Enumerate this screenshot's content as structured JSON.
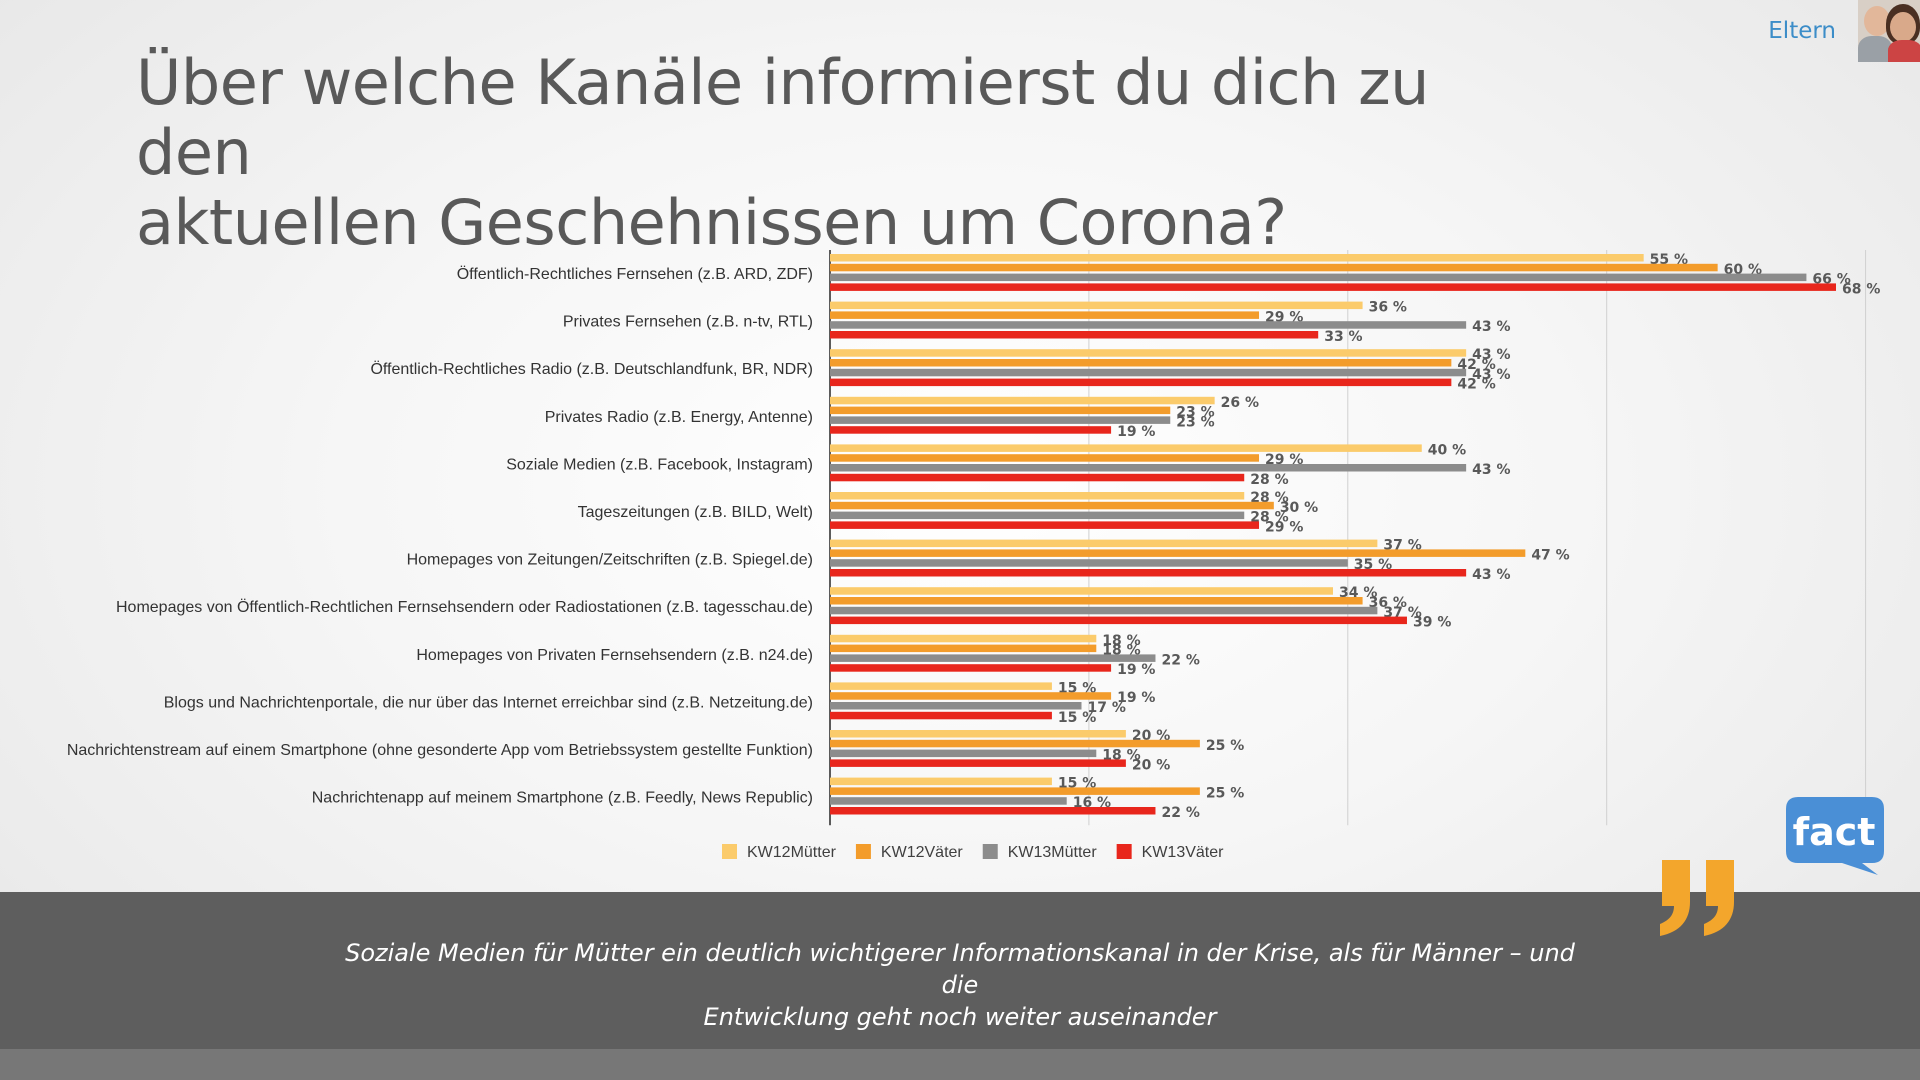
{
  "header": {
    "title_line1": "Über welche Kanäle informierst du dich zu den",
    "title_line2": "aktuellen Geschehnissen um Corona?",
    "section_label": "Eltern"
  },
  "colors": {
    "KW12Mütter": "#fbcb6b",
    "KW12Väter": "#f39c2b",
    "KW13Mütter": "#8c8c8c",
    "KW13Väter": "#e8261c",
    "quote_accent": "#f3a62c",
    "fact_logo": "#4a8fd6"
  },
  "chart_data": {
    "type": "bar",
    "orientation": "horizontal",
    "categories": [
      "Öffentlich-Rechtliches Fernsehen (z.B. ARD, ZDF)",
      "Privates Fernsehen (z.B. n-tv, RTL)",
      "Öffentlich-Rechtliches Radio (z.B. Deutschlandfunk, BR, NDR)",
      "Privates Radio (z.B. Energy, Antenne)",
      "Soziale Medien (z.B. Facebook, Instagram)",
      "Tageszeitungen (z.B. BILD, Welt)",
      "Homepages von Zeitungen/Zeitschriften (z.B. Spiegel.de)",
      "Homepages von Öffentlich-Rechtlichen Fernsehsendern oder Radiostationen (z.B. tagesschau.de)",
      "Homepages von Privaten Fernsehsendern (z.B. n24.de)",
      "Blogs und Nachrichtenportale, die nur über das Internet erreichbar sind (z.B. Netzeitung.de)",
      "Nachrichtenstream auf einem Smartphone (ohne gesonderte App vom Betriebssystem gestellte Funktion)",
      "Nachrichtenapp auf meinem Smartphone (z.B. Feedly, News Republic)"
    ],
    "series": [
      {
        "name": "KW12Mütter",
        "values": [
          55,
          36,
          43,
          26,
          40,
          28,
          37,
          34,
          18,
          15,
          20,
          15
        ]
      },
      {
        "name": "KW12Väter",
        "values": [
          60,
          29,
          42,
          23,
          29,
          30,
          47,
          36,
          18,
          19,
          25,
          25
        ]
      },
      {
        "name": "KW13Mütter",
        "values": [
          66,
          43,
          43,
          23,
          43,
          28,
          35,
          37,
          22,
          17,
          18,
          16
        ]
      },
      {
        "name": "KW13Väter",
        "values": [
          68,
          33,
          42,
          19,
          28,
          29,
          43,
          39,
          19,
          15,
          20,
          22
        ]
      }
    ],
    "value_suffix": " %",
    "xlim": [
      0,
      70
    ],
    "gridlines": [
      0,
      17.5,
      35,
      52.5,
      70
    ],
    "grid": true,
    "legend": "bottom"
  },
  "quote": {
    "line1": "Soziale Medien für Mütter ein deutlich wichtigerer Informationskanal in der Krise, als für Männer – und die",
    "line2": "Entwicklung geht noch weiter auseinander"
  },
  "logo": {
    "text": "fact",
    "icon": "speech-bubble-logo-icon"
  }
}
